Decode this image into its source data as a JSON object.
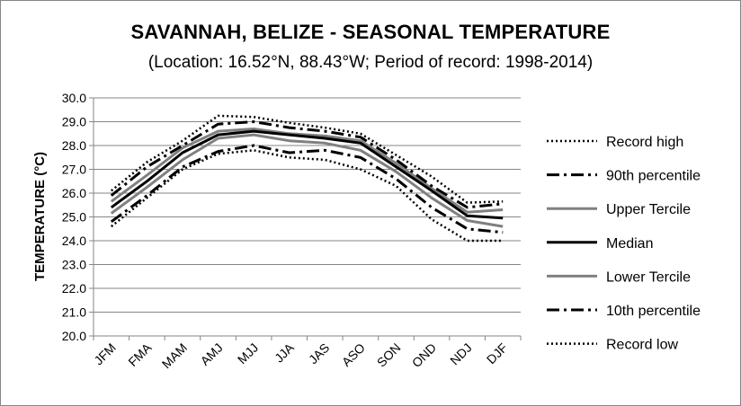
{
  "chart_data": {
    "type": "line",
    "title": "SAVANNAH, BELIZE - SEASONAL TEMPERATURE",
    "subtitle": "(Location: 16.52°N, 88.43°W; Period of record: 1998-2014)",
    "xlabel": "",
    "ylabel": "TEMPERATURE (°C)",
    "ylim": [
      20.0,
      30.0
    ],
    "ytick_step": 1.0,
    "grid": true,
    "legend_position": "right",
    "categories": [
      "JFM",
      "FMA",
      "MAM",
      "AMJ",
      "MJJ",
      "JJA",
      "JAS",
      "ASO",
      "SON",
      "OND",
      "NDJ",
      "DJF"
    ],
    "series": [
      {
        "name": "Record high",
        "color": "#000000",
        "style": "dotted",
        "values": [
          26.1,
          27.3,
          28.2,
          29.25,
          29.2,
          28.95,
          28.75,
          28.5,
          27.6,
          26.7,
          25.6,
          25.65
        ]
      },
      {
        "name": "90th percentile",
        "color": "#000000",
        "style": "dashdot",
        "values": [
          25.9,
          27.1,
          28.0,
          28.9,
          29.0,
          28.75,
          28.6,
          28.35,
          27.4,
          26.3,
          25.4,
          25.55
        ]
      },
      {
        "name": "Upper Tercile",
        "color": "#808080",
        "style": "solid",
        "values": [
          25.65,
          26.75,
          27.9,
          28.6,
          28.7,
          28.5,
          28.4,
          28.2,
          27.25,
          26.2,
          25.2,
          25.3
        ]
      },
      {
        "name": "Median",
        "color": "#000000",
        "style": "solid",
        "values": [
          25.4,
          26.5,
          27.7,
          28.45,
          28.6,
          28.45,
          28.3,
          28.1,
          27.1,
          26.1,
          25.05,
          24.95
        ]
      },
      {
        "name": "Lower Tercile",
        "color": "#808080",
        "style": "solid",
        "values": [
          25.15,
          26.25,
          27.4,
          28.3,
          28.45,
          28.2,
          28.1,
          27.8,
          26.9,
          25.8,
          24.85,
          24.6
        ]
      },
      {
        "name": "10th percentile",
        "color": "#000000",
        "style": "dashdot",
        "values": [
          24.8,
          25.9,
          27.1,
          27.75,
          28.0,
          27.7,
          27.8,
          27.5,
          26.6,
          25.4,
          24.5,
          24.35
        ]
      },
      {
        "name": "Record low",
        "color": "#000000",
        "style": "dotted",
        "values": [
          24.6,
          25.8,
          27.0,
          27.65,
          27.8,
          27.5,
          27.4,
          27.0,
          26.3,
          24.9,
          24.0,
          24.0
        ]
      }
    ]
  }
}
